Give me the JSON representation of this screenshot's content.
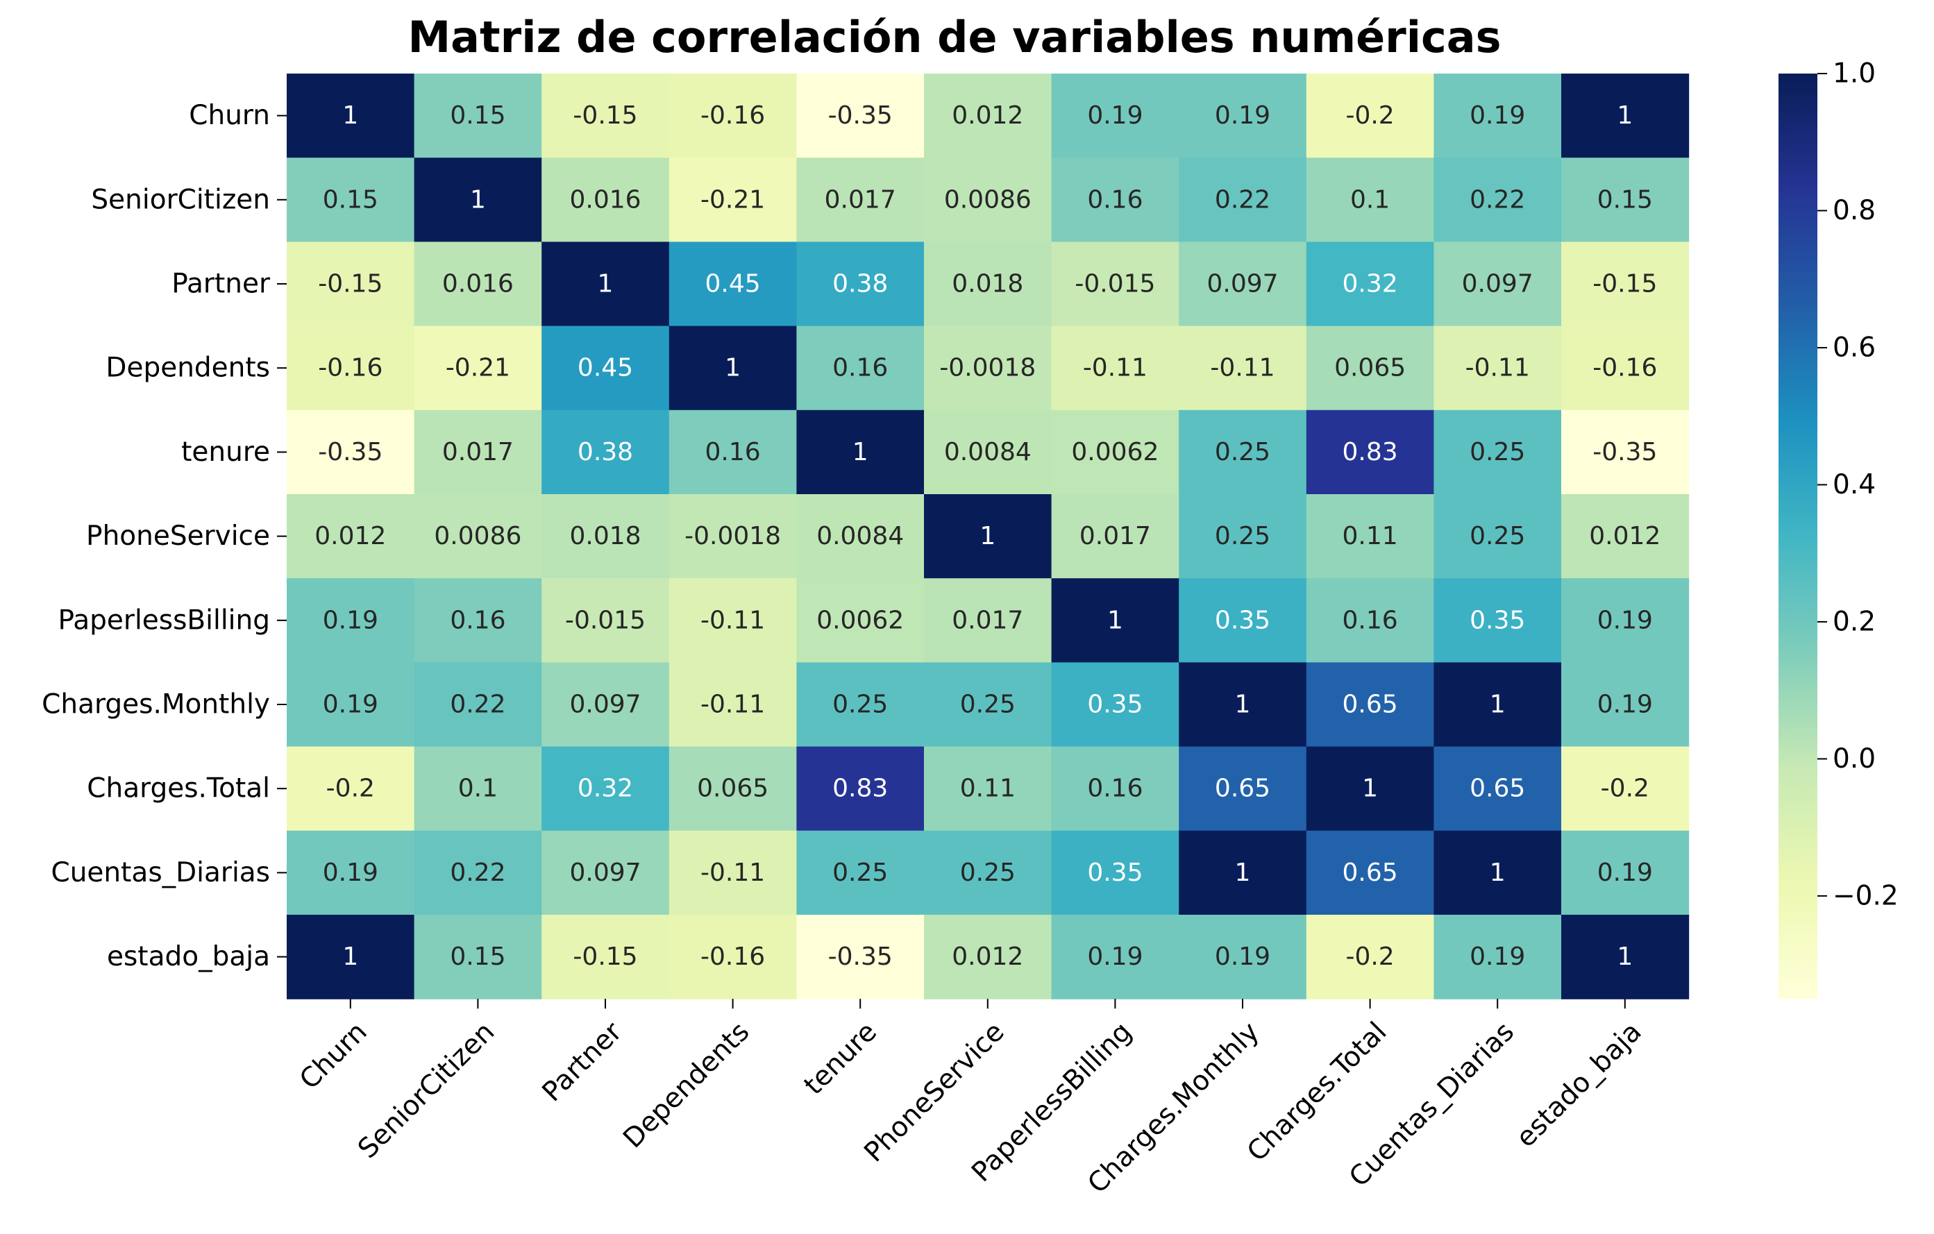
{
  "chart_data": {
    "type": "heatmap",
    "title": "Matriz de correlación de variables numéricas",
    "xlabel": "",
    "ylabel": "",
    "labels": [
      "Churn",
      "SeniorCitizen",
      "Partner",
      "Dependents",
      "tenure",
      "PhoneService",
      "PaperlessBilling",
      "Charges.Monthly",
      "Charges.Total",
      "Cuentas_Diarias",
      "estado_baja"
    ],
    "matrix": [
      [
        "1",
        "0.15",
        "-0.15",
        "-0.16",
        "-0.35",
        "0.012",
        "0.19",
        "0.19",
        "-0.2",
        "0.19",
        "1"
      ],
      [
        "0.15",
        "1",
        "0.016",
        "-0.21",
        "0.017",
        "0.0086",
        "0.16",
        "0.22",
        "0.1",
        "0.22",
        "0.15"
      ],
      [
        "-0.15",
        "0.016",
        "1",
        "0.45",
        "0.38",
        "0.018",
        "-0.015",
        "0.097",
        "0.32",
        "0.097",
        "-0.15"
      ],
      [
        "-0.16",
        "-0.21",
        "0.45",
        "1",
        "0.16",
        "-0.0018",
        "-0.11",
        "-0.11",
        "0.065",
        "-0.11",
        "-0.16"
      ],
      [
        "-0.35",
        "0.017",
        "0.38",
        "0.16",
        "1",
        "0.0084",
        "0.0062",
        "0.25",
        "0.83",
        "0.25",
        "-0.35"
      ],
      [
        "0.012",
        "0.0086",
        "0.018",
        "-0.0018",
        "0.0084",
        "1",
        "0.017",
        "0.25",
        "0.11",
        "0.25",
        "0.012"
      ],
      [
        "0.19",
        "0.16",
        "-0.015",
        "-0.11",
        "0.0062",
        "0.017",
        "1",
        "0.35",
        "0.16",
        "0.35",
        "0.19"
      ],
      [
        "0.19",
        "0.22",
        "0.097",
        "-0.11",
        "0.25",
        "0.25",
        "0.35",
        "1",
        "0.65",
        "1",
        "0.19"
      ],
      [
        "-0.2",
        "0.1",
        "0.32",
        "0.065",
        "0.83",
        "0.11",
        "0.16",
        "0.65",
        "1",
        "0.65",
        "-0.2"
      ],
      [
        "0.19",
        "0.22",
        "0.097",
        "-0.11",
        "0.25",
        "0.25",
        "0.35",
        "1",
        "0.65",
        "1",
        "0.19"
      ],
      [
        "1",
        "0.15",
        "-0.15",
        "-0.16",
        "-0.35",
        "0.012",
        "0.19",
        "0.19",
        "-0.2",
        "0.19",
        "1"
      ]
    ],
    "colorbar": {
      "min": -0.35,
      "max": 1.0,
      "ticks": [
        -0.2,
        0.0,
        0.2,
        0.4,
        0.6,
        0.8,
        1.0
      ],
      "tick_labels": [
        "−0.2",
        "0.0",
        "0.2",
        "0.4",
        "0.6",
        "0.8",
        "1.0"
      ]
    },
    "colormap": "YlGnBu",
    "colormap_stops": [
      "#ffffd9",
      "#edf8b1",
      "#c7e9b4",
      "#7fcdbb",
      "#41b6c4",
      "#1d91c0",
      "#225ea8",
      "#253494",
      "#081d58"
    ],
    "text_color_dark": "#262626",
    "text_color_light": "#ffffff",
    "grid": false,
    "legend": "colorbar-right"
  }
}
